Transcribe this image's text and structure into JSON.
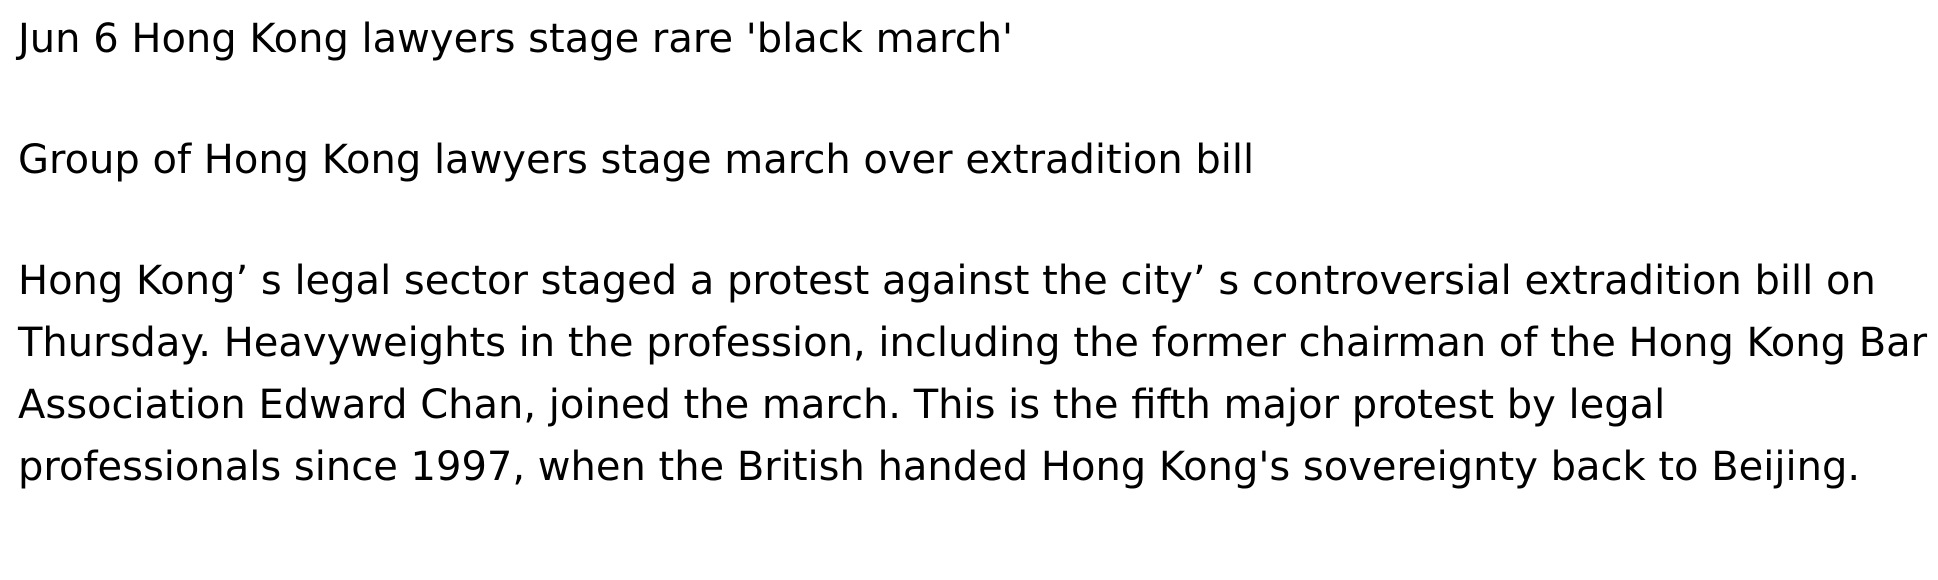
{
  "article": {
    "headline": "Jun 6 Hong Kong lawyers stage rare 'black march'",
    "subheadline": "Group of Hong Kong lawyers stage march over extradition bill",
    "body": "Hong Kong’ s legal sector staged a protest against the city’ s controversial extradition bill on Thursday. Heavyweights in the profession, including the former chairman of the Hong Kong Bar Association Edward Chan, joined the march. This is the fifth major protest by legal professionals since 1997, when the British handed Hong Kong's sovereignty back to Beijing."
  }
}
